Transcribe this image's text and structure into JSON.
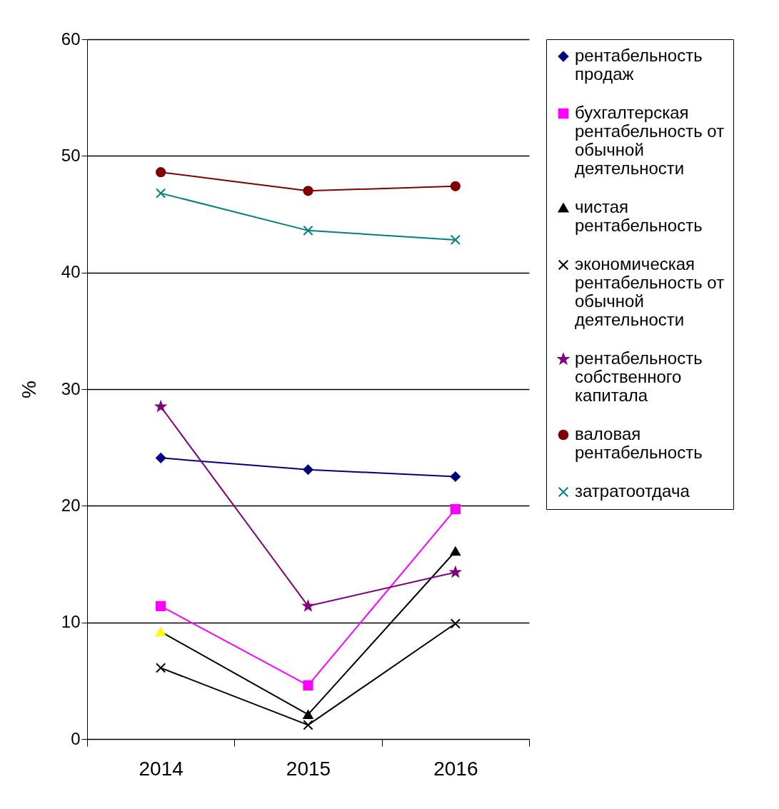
{
  "chart_data": {
    "type": "line",
    "ylabel": "%",
    "categories": [
      "2014",
      "2015",
      "2016"
    ],
    "ylim": [
      0,
      60
    ],
    "yticks": [
      0,
      10,
      20,
      30,
      40,
      50,
      60
    ],
    "grid": "y",
    "legend": "right",
    "series": [
      {
        "name": "рентабельность продаж",
        "color": "#000080",
        "marker": "diamond",
        "values": [
          24.1,
          23.1,
          22.5
        ]
      },
      {
        "name": "бухгалтерская рентабельность от обычной деятельности",
        "color": "#ff00ff",
        "marker": "square",
        "values": [
          11.4,
          4.6,
          19.7
        ]
      },
      {
        "name": "чистая рентабельность",
        "color": "#000000",
        "colors": [
          "#ffff00",
          "#000000",
          "#000000"
        ],
        "marker": "triangle",
        "values": [
          9.2,
          2.1,
          16.1
        ]
      },
      {
        "name": "экономическая рентабельность от обычной деятельности",
        "color": "#000000",
        "marker": "cross",
        "values": [
          6.1,
          1.2,
          9.9
        ]
      },
      {
        "name": "рентабельность собственного капитала",
        "color": "#800080",
        "marker": "star",
        "values": [
          28.5,
          11.4,
          14.3
        ]
      },
      {
        "name": "валовая рентабельность",
        "color": "#800000",
        "marker": "circle",
        "values": [
          48.6,
          47.0,
          47.4
        ]
      },
      {
        "name": "затратоотдача",
        "color": "#008080",
        "marker": "cross",
        "values": [
          46.8,
          43.6,
          42.8
        ]
      }
    ]
  }
}
